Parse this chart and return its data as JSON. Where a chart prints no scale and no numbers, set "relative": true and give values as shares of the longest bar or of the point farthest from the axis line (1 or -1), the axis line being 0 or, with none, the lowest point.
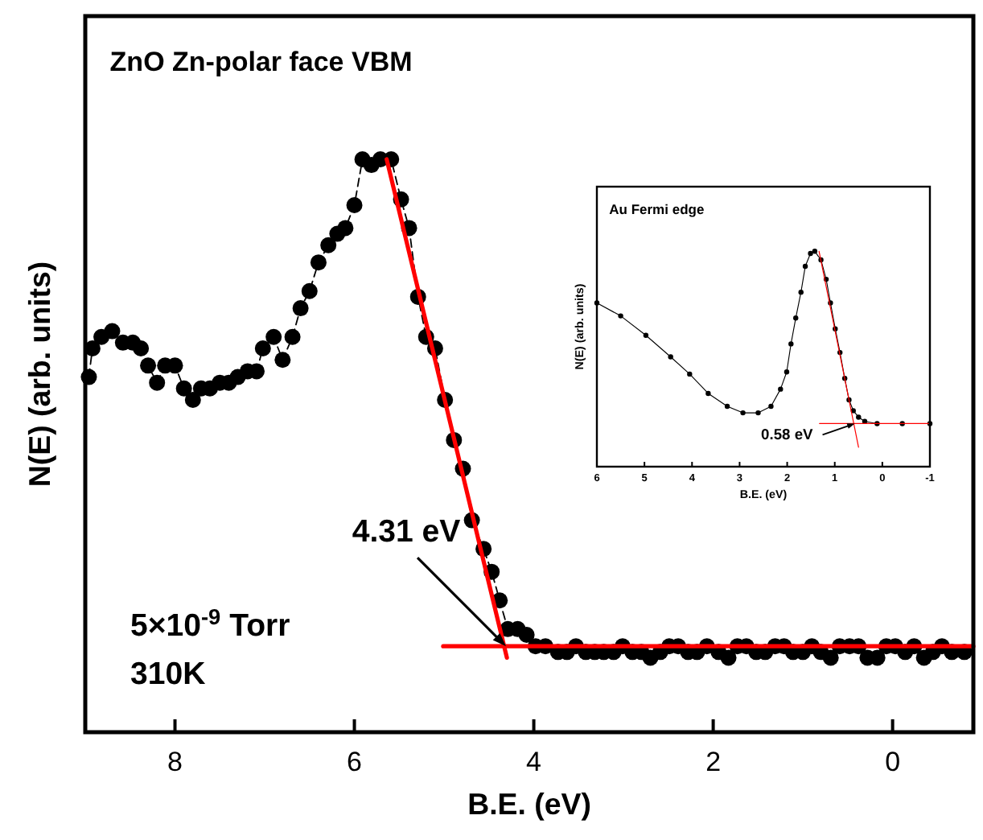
{
  "chart_data": [
    {
      "type": "line",
      "title": "ZnO Zn-polar face VBM",
      "xlabel": "B.E. (eV)",
      "ylabel": "N(E) (arb. units)",
      "relative": true,
      "xlim": [
        9,
        -0.9
      ],
      "xticks": [
        8,
        6,
        4,
        2,
        0
      ],
      "marker": "circle",
      "line_style": "dashed",
      "annotations": [
        {
          "text": "4.31 eV",
          "x": 4.31,
          "y": 0.15
        },
        "5×10$^{-9}$ Torr",
        "310K"
      ],
      "series": [
        {
          "color": "#000000",
          "x": [
            8.96,
            8.92,
            8.82,
            8.7,
            8.58,
            8.47,
            8.38,
            8.3,
            8.2,
            8.11,
            8.0,
            7.9,
            7.8,
            7.71,
            7.61,
            7.5,
            7.4,
            7.3,
            7.19,
            7.09,
            7.02,
            6.9,
            6.8,
            6.69,
            6.6,
            6.5,
            6.4,
            6.29,
            6.19,
            6.1,
            6.0,
            5.91,
            5.81,
            5.71,
            5.59,
            5.48,
            5.39,
            5.29,
            5.2,
            5.1,
            4.99,
            4.89,
            4.79,
            4.69,
            4.56,
            4.47,
            4.38,
            4.29,
            4.18,
            4.08,
            3.98,
            3.87,
            3.73,
            3.63,
            3.53,
            3.42,
            3.32,
            3.22,
            3.11,
            3.01,
            2.9,
            2.8,
            2.7,
            2.59,
            2.49,
            2.39,
            2.28,
            2.18,
            2.07,
            1.94,
            1.83,
            1.73,
            1.63,
            1.52,
            1.42,
            1.31,
            1.21,
            1.11,
            1.0,
            0.9,
            0.8,
            0.69,
            0.59,
            0.48,
            0.38,
            0.28,
            0.17,
            0.07,
            -0.03,
            -0.14,
            -0.24,
            -0.35,
            -0.45,
            -0.55,
            -0.66,
            -0.8
          ],
          "values": [
            0.62,
            0.67,
            0.69,
            0.7,
            0.68,
            0.68,
            0.67,
            0.64,
            0.61,
            0.64,
            0.64,
            0.6,
            0.58,
            0.6,
            0.6,
            0.61,
            0.61,
            0.62,
            0.63,
            0.63,
            0.67,
            0.69,
            0.65,
            0.69,
            0.74,
            0.77,
            0.82,
            0.85,
            0.87,
            0.88,
            0.92,
            1.0,
            0.99,
            1.0,
            1.0,
            0.93,
            0.88,
            0.76,
            0.69,
            0.67,
            0.58,
            0.51,
            0.46,
            0.37,
            0.32,
            0.28,
            0.23,
            0.18,
            0.18,
            0.17,
            0.15,
            0.15,
            0.14,
            0.14,
            0.15,
            0.14,
            0.14,
            0.14,
            0.14,
            0.15,
            0.14,
            0.14,
            0.13,
            0.14,
            0.15,
            0.15,
            0.14,
            0.14,
            0.15,
            0.14,
            0.13,
            0.15,
            0.15,
            0.14,
            0.14,
            0.15,
            0.15,
            0.14,
            0.14,
            0.15,
            0.14,
            0.13,
            0.15,
            0.15,
            0.15,
            0.13,
            0.13,
            0.15,
            0.15,
            0.14,
            0.15,
            0.13,
            0.14,
            0.15,
            0.14,
            0.14
          ]
        },
        {
          "type": "line",
          "color": "#ff0000",
          "marker": "none",
          "line_style": "solid",
          "x": [
            5.64,
            4.3
          ],
          "values": [
            1.0,
            0.13
          ]
        },
        {
          "type": "line",
          "color": "#ff0000",
          "marker": "none",
          "line_style": "solid",
          "x": [
            5.01,
            -0.9
          ],
          "values": [
            0.15,
            0.15
          ]
        }
      ]
    },
    {
      "type": "line",
      "title": "Au Fermi edge",
      "xlabel": "B.E. (eV)",
      "ylabel": "N(E) (arb. units)",
      "relative": true,
      "xlim": [
        6,
        -1
      ],
      "xticks": [
        6,
        5,
        4,
        3,
        2,
        1,
        0,
        -1
      ],
      "marker": "circle",
      "line_style": "solid",
      "annotations": [
        {
          "text": "0.58 eV",
          "x": 0.58,
          "y": 0.2
        }
      ],
      "series": [
        {
          "color": "#000000",
          "x": [
            6.0,
            5.5,
            4.97,
            4.45,
            4.05,
            3.66,
            3.26,
            2.93,
            2.61,
            2.34,
            2.14,
            2.01,
            1.92,
            1.82,
            1.71,
            1.62,
            1.51,
            1.42,
            1.29,
            1.18,
            1.09,
            0.99,
            0.89,
            0.79,
            0.7,
            0.61,
            0.5,
            0.37,
            0.11,
            -0.42,
            -1.0
          ],
          "values": [
            0.76,
            0.7,
            0.61,
            0.51,
            0.43,
            0.34,
            0.28,
            0.25,
            0.25,
            0.28,
            0.36,
            0.44,
            0.57,
            0.69,
            0.81,
            0.93,
            0.99,
            1.0,
            0.96,
            0.87,
            0.76,
            0.64,
            0.53,
            0.41,
            0.31,
            0.26,
            0.23,
            0.21,
            0.2,
            0.2,
            0.2
          ]
        },
        {
          "type": "line",
          "color": "#ff0000",
          "marker": "none",
          "line_style": "solid",
          "x": [
            1.33,
            0.5
          ],
          "values": [
            1.0,
            0.09
          ]
        },
        {
          "type": "line",
          "color": "#ff0000",
          "marker": "none",
          "line_style": "solid",
          "x": [
            1.32,
            -1.0
          ],
          "values": [
            0.2,
            0.2
          ]
        }
      ]
    }
  ]
}
